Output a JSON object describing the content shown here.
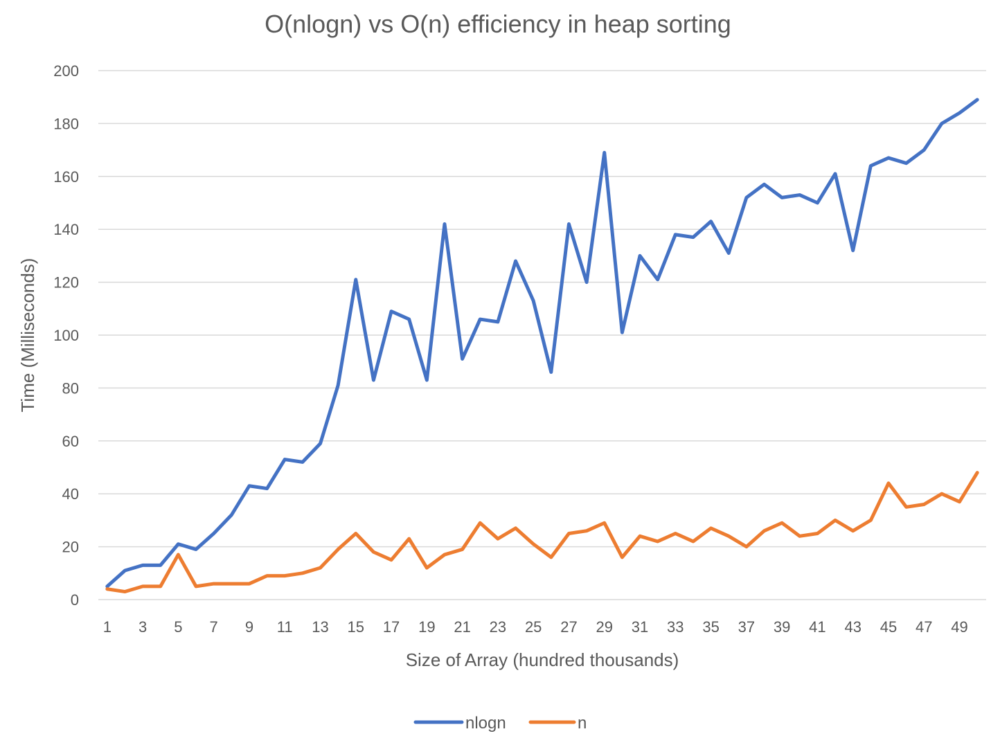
{
  "chart_data": {
    "type": "line",
    "title": "O(nlogn) vs O(n) efficiency in heap sorting",
    "xlabel": "Size of Array (hundred thousands)",
    "ylabel": "Time (Milliseconds)",
    "ylim": [
      0,
      200
    ],
    "y_ticks": [
      0,
      20,
      40,
      60,
      80,
      100,
      120,
      140,
      160,
      180,
      200
    ],
    "x_tick_labels": [
      "1",
      "3",
      "5",
      "7",
      "9",
      "11",
      "13",
      "15",
      "17",
      "19",
      "21",
      "23",
      "25",
      "27",
      "29",
      "31",
      "33",
      "35",
      "37",
      "39",
      "41",
      "43",
      "45",
      "47",
      "49"
    ],
    "x": [
      1,
      2,
      3,
      4,
      5,
      6,
      7,
      8,
      9,
      10,
      11,
      12,
      13,
      14,
      15,
      16,
      17,
      18,
      19,
      20,
      21,
      22,
      23,
      24,
      25,
      26,
      27,
      28,
      29,
      30,
      31,
      32,
      33,
      34,
      35,
      36,
      37,
      38,
      39,
      40,
      41,
      42,
      43,
      44,
      45,
      46,
      47,
      48,
      49,
      50
    ],
    "grid": true,
    "legend_position": "bottom",
    "series": [
      {
        "name": "nlogn",
        "color": "#4472c4",
        "values": [
          5,
          11,
          13,
          13,
          21,
          19,
          25,
          32,
          43,
          42,
          53,
          52,
          59,
          81,
          121,
          83,
          109,
          106,
          83,
          142,
          91,
          106,
          105,
          128,
          113,
          86,
          142,
          120,
          169,
          101,
          130,
          121,
          138,
          137,
          143,
          131,
          152,
          157,
          152,
          153,
          150,
          161,
          132,
          164,
          167,
          165,
          170,
          180,
          184,
          189
        ]
      },
      {
        "name": "n",
        "color": "#ed7d31",
        "values": [
          4,
          3,
          5,
          5,
          17,
          5,
          6,
          6,
          6,
          9,
          9,
          10,
          12,
          19,
          25,
          18,
          15,
          23,
          12,
          17,
          19,
          29,
          23,
          27,
          21,
          16,
          25,
          26,
          29,
          16,
          24,
          22,
          25,
          22,
          27,
          24,
          20,
          26,
          29,
          24,
          25,
          30,
          26,
          30,
          44,
          35,
          36,
          40,
          37,
          48
        ]
      }
    ]
  }
}
